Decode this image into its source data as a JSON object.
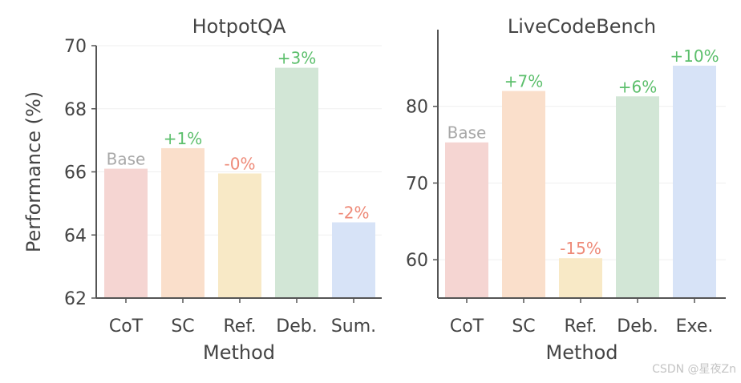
{
  "chart_data": [
    {
      "type": "bar",
      "title": "HotpotQA",
      "xlabel": "Method",
      "ylabel": "Performance (%)",
      "categories": [
        "CoT",
        "SC",
        "Ref.",
        "Deb.",
        "Sum."
      ],
      "values": [
        66.1,
        66.75,
        65.95,
        69.3,
        64.4
      ],
      "labels": [
        "Base",
        "+1%",
        "-0%",
        "+3%",
        "-2%"
      ],
      "ylim": [
        62,
        70
      ],
      "yticks": [
        62,
        64,
        66,
        68,
        70
      ],
      "grid": true
    },
    {
      "type": "bar",
      "title": "LiveCodeBench",
      "xlabel": "Method",
      "ylabel": "",
      "categories": [
        "CoT",
        "SC",
        "Ref.",
        "Deb.",
        "Exe."
      ],
      "values": [
        75.3,
        82.0,
        60.2,
        81.3,
        85.3
      ],
      "labels": [
        "Base",
        "+7%",
        "-15%",
        "+6%",
        "+10%"
      ],
      "ylim": [
        55,
        90
      ],
      "yticks": [
        60,
        70,
        80
      ],
      "grid": true
    }
  ],
  "colors": {
    "bars": [
      "#f5d5d2",
      "#fadfcb",
      "#f8e9c6",
      "#d2e6d6",
      "#d7e3f7"
    ],
    "positive": "#5cbf6c",
    "negative": "#ee8a78",
    "base": "#a8a8a8",
    "axis": "#555555",
    "text": "#444444",
    "grid": "#efefef"
  },
  "watermark": "CSDN @星夜Zn"
}
